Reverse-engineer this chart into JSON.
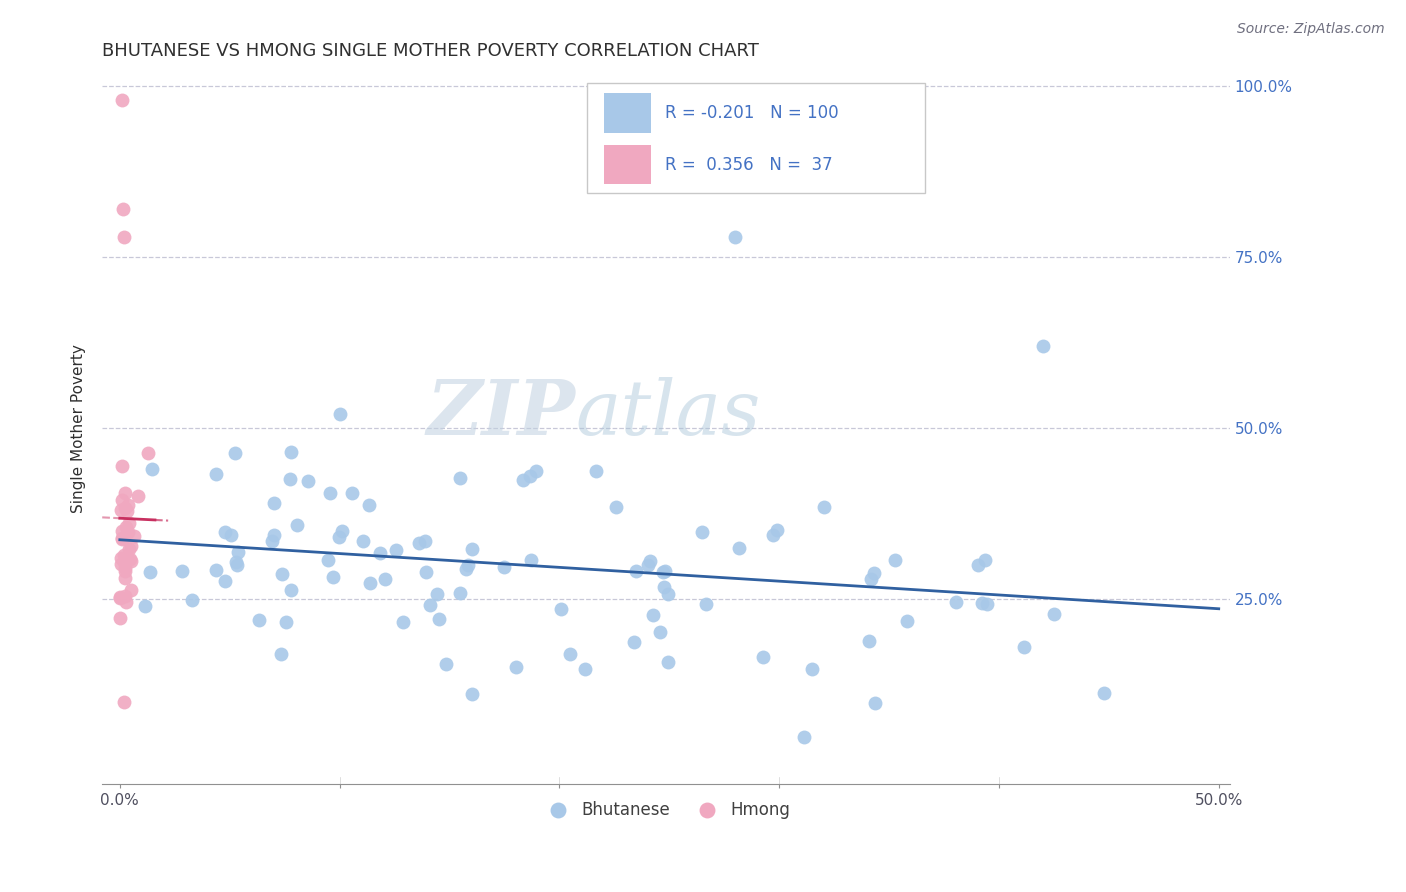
{
  "title": "BHUTANESE VS HMONG SINGLE MOTHER POVERTY CORRELATION CHART",
  "source_text": "Source: ZipAtlas.com",
  "ylabel": "Single Mother Poverty",
  "blue_color": "#a8c8e8",
  "pink_color": "#f0a8c0",
  "blue_line_color": "#3060a0",
  "pink_line_color": "#c83060",
  "legend_R1": "-0.201",
  "legend_N1": "100",
  "legend_R2": "0.356",
  "legend_N2": "37",
  "watermark": "ZIPatlas",
  "grid_color": "#c8c8d8",
  "title_color": "#303030",
  "right_axis_color": "#4472c4",
  "source_color": "#707080"
}
